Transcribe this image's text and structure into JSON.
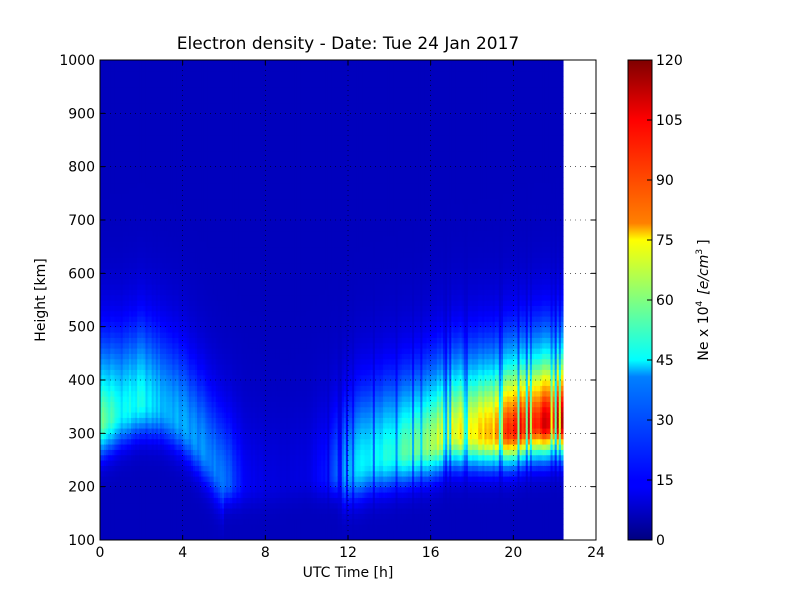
{
  "figure": {
    "background": "#ffffff"
  },
  "chart_data": {
    "type": "heatmap",
    "title": "Electron density - Date: Tue 24 Jan 2017",
    "xlabel": "UTC Time [h]",
    "ylabel": "Height [km]",
    "xlim": [
      0,
      24
    ],
    "ylim": [
      100,
      1000
    ],
    "x_ticks": [
      "0",
      "4",
      "8",
      "12",
      "16",
      "20",
      "24"
    ],
    "y_ticks": [
      "100",
      "200",
      "300",
      "400",
      "500",
      "600",
      "700",
      "800",
      "900",
      "1000"
    ],
    "grid": true,
    "data_end_hour": 22.4,
    "colorbar": {
      "label": "Ne x 10",
      "label_superscript": "4",
      "label_units": "[e/cm",
      "label_units_superscript": "3",
      "label_units_close": "]",
      "colormap": "jet",
      "range": [
        0,
        120
      ],
      "ticks": [
        "0",
        "15",
        "30",
        "45",
        "60",
        "75",
        "90",
        "105",
        "120"
      ]
    },
    "peak_profile": [
      {
        "t": 0.0,
        "h": 320,
        "ne": 60
      },
      {
        "t": 1.0,
        "h": 340,
        "ne": 45
      },
      {
        "t": 2.0,
        "h": 360,
        "ne": 45
      },
      {
        "t": 3.0,
        "h": 350,
        "ne": 35
      },
      {
        "t": 4.0,
        "h": 320,
        "ne": 32
      },
      {
        "t": 5.0,
        "h": 270,
        "ne": 28
      },
      {
        "t": 6.0,
        "h": 210,
        "ne": 25
      },
      {
        "t": 7.0,
        "h": 205,
        "ne": 8
      },
      {
        "t": 8.0,
        "h": 205,
        "ne": 5
      },
      {
        "t": 9.0,
        "h": 210,
        "ne": 4
      },
      {
        "t": 10.0,
        "h": 220,
        "ne": 5
      },
      {
        "t": 11.0,
        "h": 220,
        "ne": 12
      },
      {
        "t": 12.0,
        "h": 230,
        "ne": 35
      },
      {
        "t": 13.0,
        "h": 250,
        "ne": 45
      },
      {
        "t": 14.0,
        "h": 260,
        "ne": 50
      },
      {
        "t": 15.0,
        "h": 270,
        "ne": 60
      },
      {
        "t": 16.0,
        "h": 280,
        "ne": 68
      },
      {
        "t": 17.0,
        "h": 300,
        "ne": 78
      },
      {
        "t": 18.0,
        "h": 300,
        "ne": 82
      },
      {
        "t": 19.0,
        "h": 300,
        "ne": 88
      },
      {
        "t": 20.0,
        "h": 305,
        "ne": 110
      },
      {
        "t": 21.0,
        "h": 315,
        "ne": 120
      },
      {
        "t": 22.0,
        "h": 320,
        "ne": 120
      },
      {
        "t": 22.4,
        "h": 320,
        "ne": 118
      }
    ]
  }
}
